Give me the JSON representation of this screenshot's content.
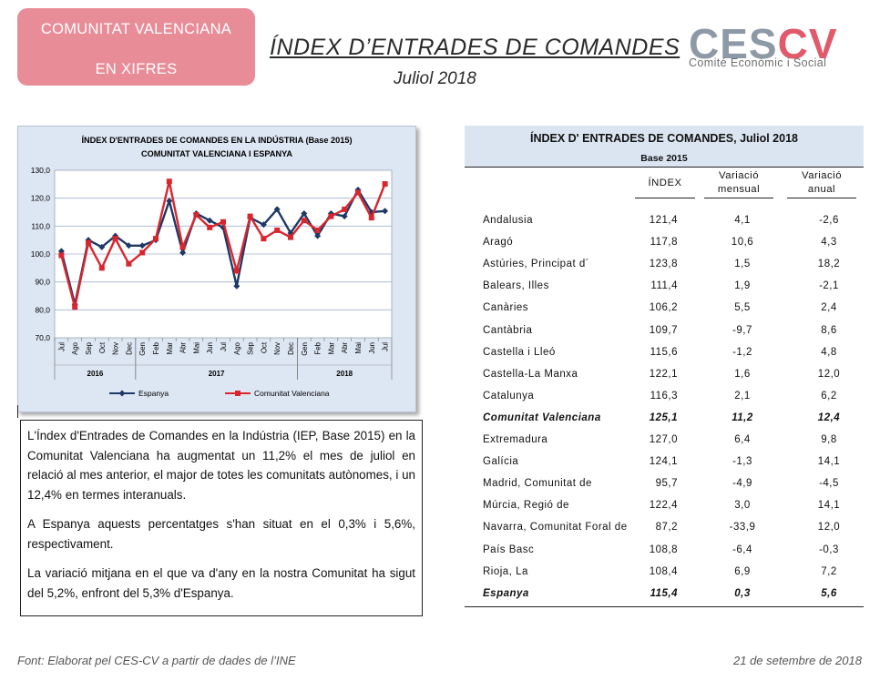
{
  "badge": {
    "line1": "COMUNITAT VALENCIANA",
    "line2": "EN XIFRES"
  },
  "header": {
    "title": "ÍNDEX D’ENTRADES DE COMANDES",
    "subtitle": "Juliol 2018"
  },
  "logo": {
    "text": "CESCV",
    "subtitle": "Comité Econòmic i Social",
    "colors": {
      "ces": "#8d99a6",
      "cv": "#e05a6b"
    }
  },
  "chart_data": {
    "type": "line",
    "title": "ÍNDEX D'ENTRADES DE COMANDES  EN LA INDÚSTRIA (Base 2015)",
    "subtitle": "COMUNITAT  VALENCIANA  I ESPANYA",
    "categories": [
      "Jul",
      "Ago",
      "Sep",
      "Oct",
      "Nov",
      "Dec",
      "Gen",
      "Feb",
      "Mar",
      "Abr",
      "Mai",
      "Jun",
      "Jul",
      "Ago",
      "Sep",
      "Oct",
      "Nov",
      "Dec",
      "Gen",
      "Feb",
      "Mar",
      "Abr",
      "Mai",
      "Jun",
      "Jul"
    ],
    "year_groups": [
      {
        "label": "2016",
        "start": 0,
        "end": 5
      },
      {
        "label": "2017",
        "start": 6,
        "end": 17
      },
      {
        "label": "2018",
        "start": 18,
        "end": 24
      }
    ],
    "ylim": [
      70,
      130
    ],
    "yticks": [
      "130,0",
      "120,0",
      "110,0",
      "100,0",
      "90,0",
      "80,0",
      "70,0"
    ],
    "grid": true,
    "legend_position": "bottom",
    "series": [
      {
        "name": "Espanya",
        "color": "#1f3864",
        "marker": "diamond",
        "values": [
          101,
          82,
          105,
          102.5,
          106.5,
          103,
          103,
          105,
          119,
          100.5,
          114.5,
          112,
          109.5,
          88.5,
          113,
          110.5,
          116,
          107.5,
          114.5,
          106.5,
          114.5,
          113.5,
          123,
          115,
          115.4
        ]
      },
      {
        "name": "Comunitat Valenciana",
        "color": "#d9262e",
        "marker": "square",
        "values": [
          99.5,
          81,
          104,
          95,
          105.5,
          96.5,
          100.5,
          105.5,
          126,
          102.5,
          114,
          109.5,
          111.5,
          94,
          113.5,
          105.5,
          108.5,
          106,
          112,
          108.5,
          113.5,
          116,
          122,
          113,
          125.1
        ]
      }
    ]
  },
  "text_box": {
    "p1": "L'Índex d'Entrades de Comandes en la Indústria (IEP, Base 2015) en la Comunitat Valenciana ha augmentat un 11,2% el mes de juliol en relació al mes anterior, el major de totes les comunitats autònomes, i un 12,4% en termes interanuals.",
    "p2": "A Espanya aquests percentatges s'han situat en el 0,3% i 5,6%, respectivament.",
    "p3": "La variació mitjana en el que va d'any en la nostra Comunitat ha sigut del 5,2%, enfront del 5,3% d'Espanya."
  },
  "table": {
    "title": "ÍNDEX D' ENTRADES DE COMANDES, Juliol 2018",
    "base": "Base 2015",
    "headers": {
      "index": "ÍNDEX",
      "monthly_1": "Variació",
      "monthly_2": "mensual",
      "annual_1": "Variació",
      "annual_2": "anual"
    },
    "rows": [
      {
        "name": "Andalusia",
        "index": "121,4",
        "monthly": "4,1",
        "annual": "-2,6"
      },
      {
        "name": "Aragó",
        "index": "117,8",
        "monthly": "10,6",
        "annual": "4,3"
      },
      {
        "name": "Astúries, Principat d´",
        "index": "123,8",
        "monthly": "1,5",
        "annual": "18,2"
      },
      {
        "name": "Balears, Illes",
        "index": "111,4",
        "monthly": "1,9",
        "annual": "-2,1"
      },
      {
        "name": "Canàries",
        "index": "106,2",
        "monthly": "5,5",
        "annual": "2,4"
      },
      {
        "name": "Cantàbria",
        "index": "109,7",
        "monthly": "-9,7",
        "annual": "8,6"
      },
      {
        "name": "Castella i Lleó",
        "index": "115,6",
        "monthly": "-1,2",
        "annual": "4,8"
      },
      {
        "name": "Castella-La Manxa",
        "index": "122,1",
        "monthly": "1,6",
        "annual": "12,0"
      },
      {
        "name": "Catalunya",
        "index": "116,3",
        "monthly": "2,1",
        "annual": "6,2"
      },
      {
        "name": "Comunitat Valenciana",
        "index": "125,1",
        "monthly": "11,2",
        "annual": "12,4",
        "highlight": true
      },
      {
        "name": "Extremadura",
        "index": "127,0",
        "monthly": "6,4",
        "annual": "9,8"
      },
      {
        "name": "Galícia",
        "index": "124,1",
        "monthly": "-1,3",
        "annual": "14,1"
      },
      {
        "name": "Madrid, Comunitat de",
        "index": "95,7",
        "monthly": "-4,9",
        "annual": "-4,5"
      },
      {
        "name": "Múrcia, Regió de",
        "index": "122,4",
        "monthly": "3,0",
        "annual": "14,1"
      },
      {
        "name": "Navarra, Comunitat Foral de",
        "index": "87,2",
        "monthly": "-33,9",
        "annual": "12,0"
      },
      {
        "name": "País Basc",
        "index": "108,8",
        "monthly": "-6,4",
        "annual": "-0,3"
      },
      {
        "name": "Rioja, La",
        "index": "108,4",
        "monthly": "6,9",
        "annual": "7,2"
      },
      {
        "name": "Espanya",
        "index": "115,4",
        "monthly": "0,3",
        "annual": "5,6",
        "highlight": true
      }
    ]
  },
  "footer": {
    "source": "Font: Elaborat pel CES-CV a partir de dades de l’INE",
    "date": "21 de setembre de 2018"
  }
}
